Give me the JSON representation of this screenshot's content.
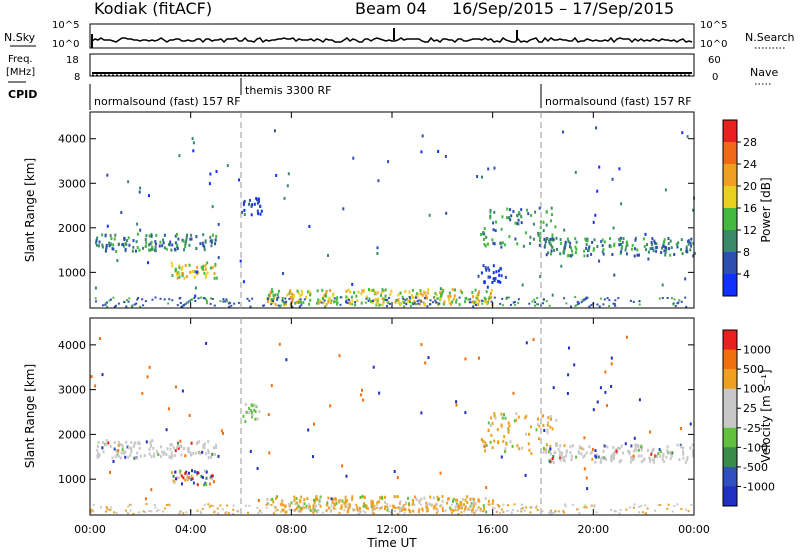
{
  "header": {
    "station": "Kodiak (fitACF)",
    "beam": "Beam 04",
    "date_range": "16/Sep/2015 – 17/Sep/2015"
  },
  "status_panels": {
    "nsky": {
      "left_label": "N.Sky",
      "right_label": "N.Search",
      "ticks_left": [
        "10^5",
        "10^0"
      ],
      "ticks_right": [
        "10^5",
        "10^0"
      ]
    },
    "freq": {
      "left_label": "Freq.",
      "left_unit": "[MHz]",
      "right_label": "Nave",
      "ticks_left": [
        "18",
        "8"
      ],
      "ticks_right": [
        "60",
        "0"
      ]
    },
    "cpid": {
      "label": "CPID",
      "segments": [
        {
          "name": "normalsound (fast) 157 RF",
          "start_hour": 0,
          "end_hour": 6.1
        },
        {
          "name": "themis 3300 RF",
          "start_hour": 6.1,
          "end_hour": 18.0
        },
        {
          "name": "normalsound (fast) 157 RF",
          "start_hour": 18.0,
          "end_hour": 24
        }
      ]
    }
  },
  "x_axis": {
    "label": "Time UT",
    "ticks": [
      "00:00",
      "04:00",
      "08:00",
      "12:00",
      "16:00",
      "20:00",
      "00:00"
    ]
  },
  "chart_data": [
    {
      "type": "heatmap",
      "parameter": "Power",
      "ylabel": "Slant Range [km]",
      "xlim": [
        0,
        24
      ],
      "ylim": [
        200,
        4600
      ],
      "yticks": [
        1000,
        2000,
        3000,
        4000
      ],
      "colorbar": {
        "label": "Power [dB]",
        "ticks": [
          "4",
          "8",
          "12",
          "16",
          "20",
          "24",
          "28"
        ],
        "colors": [
          "#1030ff",
          "#2d4fb0",
          "#3a8a6a",
          "#44b840",
          "#e8d020",
          "#f0a020",
          "#f06818",
          "#e82020"
        ]
      },
      "echo_regions": [
        {
          "t": [
            0.2,
            5.0
          ],
          "range": [
            1500,
            1900
          ],
          "level": "mid"
        },
        {
          "t": [
            3.2,
            5.0
          ],
          "range": [
            900,
            1250
          ],
          "level": "high"
        },
        {
          "t": [
            6.0,
            6.8
          ],
          "range": [
            2300,
            2700
          ],
          "level": "low"
        },
        {
          "t": [
            7.0,
            16.0
          ],
          "range": [
            300,
            650
          ],
          "level": "high"
        },
        {
          "t": [
            15.5,
            18.5
          ],
          "range": [
            1600,
            2500
          ],
          "level": "mid"
        },
        {
          "t": [
            15.5,
            16.5
          ],
          "range": [
            800,
            1200
          ],
          "level": "low"
        },
        {
          "t": [
            18.0,
            24.0
          ],
          "range": [
            1400,
            1800
          ],
          "level": "mid"
        }
      ]
    },
    {
      "type": "heatmap",
      "parameter": "Velocity",
      "ylabel": "Slant Range [km]",
      "xlim": [
        0,
        24
      ],
      "ylim": [
        200,
        4600
      ],
      "yticks": [
        1000,
        2000,
        3000,
        4000
      ],
      "colorbar": {
        "label": "Velocity [m s⁻¹]",
        "ticks": [
          "1000",
          "500",
          "100",
          "25",
          "-25",
          "-100",
          "-500",
          "-1000"
        ],
        "colors": [
          "#2030c0",
          "#3050c0",
          "#3a8a4a",
          "#60c040",
          "#c8c8c8",
          "#c8c8c8",
          "#f0a020",
          "#f07010",
          "#e82020"
        ]
      },
      "echo_regions": [
        {
          "t": [
            0.2,
            5.0
          ],
          "range": [
            1500,
            1900
          ],
          "level": "grey"
        },
        {
          "t": [
            3.2,
            5.0
          ],
          "range": [
            900,
            1250
          ],
          "level": "mixed"
        },
        {
          "t": [
            6.0,
            6.8
          ],
          "range": [
            2300,
            2700
          ],
          "level": "green"
        },
        {
          "t": [
            7.0,
            16.0
          ],
          "range": [
            300,
            650
          ],
          "level": "orange"
        },
        {
          "t": [
            15.5,
            18.5
          ],
          "range": [
            1600,
            2500
          ],
          "level": "orange"
        },
        {
          "t": [
            18.0,
            24.0
          ],
          "range": [
            1400,
            1800
          ],
          "level": "grey"
        }
      ]
    }
  ]
}
